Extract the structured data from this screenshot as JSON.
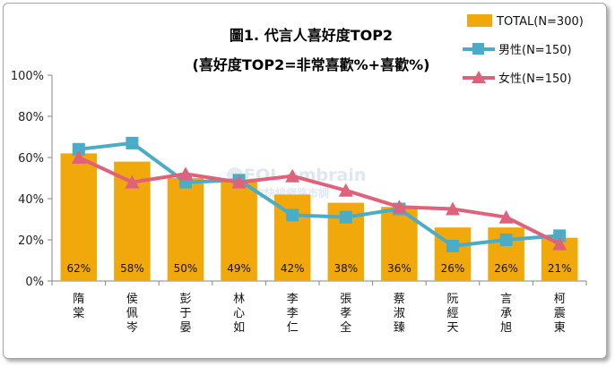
{
  "chart_data": {
    "type": "bar",
    "title": "圖1. 代言人喜好度TOP2",
    "subtitle": "(喜好度TOP2=非常喜歡%+喜歡%)",
    "categories": [
      "隋棠",
      "侯佩岑",
      "彭于晏",
      "林心如",
      "李李仁",
      "張孝全",
      "蔡淑臻",
      "阮經天",
      "言承旭",
      "柯震東"
    ],
    "ylim": [
      0,
      100
    ],
    "yticks": [
      "0%",
      "20%",
      "40%",
      "60%",
      "80%",
      "100%"
    ],
    "grid": false,
    "legend_position": "top-right",
    "series": [
      {
        "name": "TOTAL(N=300)",
        "kind": "bar",
        "color": "#f0a80a",
        "values": [
          62,
          58,
          50,
          49,
          42,
          38,
          36,
          26,
          26,
          21
        ],
        "labels": [
          "62%",
          "58%",
          "50%",
          "49%",
          "42%",
          "38%",
          "36%",
          "26%",
          "26%",
          "21%"
        ]
      },
      {
        "name": "男性(N=150)",
        "kind": "line",
        "marker": "square",
        "color": "#4bacc6",
        "values": [
          64,
          67,
          48,
          49,
          32,
          31,
          35,
          17,
          20,
          22
        ]
      },
      {
        "name": "女性(N=150)",
        "kind": "line",
        "marker": "triangle",
        "color": "#e0617a",
        "values": [
          60,
          48,
          52,
          48,
          51,
          44,
          36,
          35,
          31,
          18
        ]
      }
    ]
  },
  "watermark": {
    "brand": "EOL embrain",
    "tagline": "東方快線網路市調"
  }
}
